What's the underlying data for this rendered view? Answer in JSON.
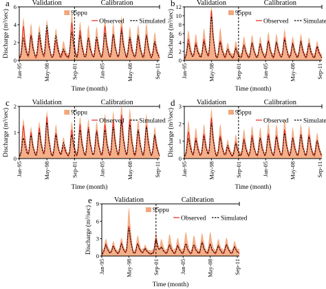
{
  "colors": {
    "band": "#f2a77c",
    "observed": "#e8322a",
    "simulated": "#000000"
  },
  "chart_data": [
    {
      "type": "line",
      "panel": "a",
      "periods": [
        "Validation",
        "Calibration"
      ],
      "xlabel": "Time (month)",
      "ylabel": "Discharge (m³/sec)",
      "ylim": [
        0,
        6
      ],
      "yticks": [
        "0",
        "2",
        "4",
        "6"
      ],
      "xticks": [
        "Jan-95",
        "May-98",
        "Sep-01",
        "Jan-05",
        "May-08",
        "Sep-11"
      ],
      "legend": [
        "95ppu",
        "Observed",
        "Simulated"
      ],
      "peaks": [
        {
          "m": 6,
          "obs": 3.6,
          "sim": 2.2,
          "up": 4.4
        },
        {
          "m": 17,
          "obs": 2.6,
          "sim": 2.4,
          "up": 3.8
        },
        {
          "m": 29,
          "obs": 2.4,
          "sim": 2.8,
          "up": 3.6
        },
        {
          "m": 40,
          "obs": 3.2,
          "sim": 3.6,
          "up": 4.2
        },
        {
          "m": 53,
          "obs": 2.0,
          "sim": 2.5,
          "up": 3.2
        },
        {
          "m": 64,
          "obs": 0.8,
          "sim": 1.0,
          "up": 1.8
        },
        {
          "m": 76,
          "obs": 4.0,
          "sim": 2.9,
          "up": 5.0
        },
        {
          "m": 88,
          "obs": 3.1,
          "sim": 2.5,
          "up": 4.0
        },
        {
          "m": 100,
          "obs": 2.3,
          "sim": 2.2,
          "up": 3.6
        },
        {
          "m": 112,
          "obs": 2.1,
          "sim": 2.3,
          "up": 3.4
        },
        {
          "m": 124,
          "obs": 3.6,
          "sim": 2.8,
          "up": 4.2
        },
        {
          "m": 136,
          "obs": 2.7,
          "sim": 2.6,
          "up": 3.8
        },
        {
          "m": 148,
          "obs": 3.4,
          "sim": 3.0,
          "up": 4.6
        },
        {
          "m": 160,
          "obs": 2.1,
          "sim": 2.3,
          "up": 3.4
        },
        {
          "m": 172,
          "obs": 2.4,
          "sim": 2.5,
          "up": 3.6
        },
        {
          "m": 184,
          "obs": 2.6,
          "sim": 2.4,
          "up": 3.8
        },
        {
          "m": 196,
          "obs": 1.7,
          "sim": 1.8,
          "up": 2.8
        }
      ]
    },
    {
      "type": "line",
      "panel": "b",
      "periods": [
        "Validation",
        "Calibration"
      ],
      "xlabel": "Time (month)",
      "ylabel": "Discharge (m³/sec)",
      "ylim": [
        0,
        12
      ],
      "yticks": [
        "0",
        "2",
        "4",
        "6",
        "8",
        "10",
        "12"
      ],
      "xticks": [
        "Jan-95",
        "May-98",
        "Sep-01",
        "Jan-05",
        "May-08",
        "Sep-11"
      ],
      "legend": [
        "95ppu",
        "Observed",
        "Simulated"
      ],
      "peaks": [
        {
          "m": 6,
          "obs": 4.2,
          "sim": 3.2,
          "up": 6.0
        },
        {
          "m": 17,
          "obs": 3.4,
          "sim": 3.0,
          "up": 5.2
        },
        {
          "m": 29,
          "obs": 4.2,
          "sim": 3.6,
          "up": 6.4
        },
        {
          "m": 40,
          "obs": 10.8,
          "sim": 9.2,
          "up": 11.6
        },
        {
          "m": 53,
          "obs": 4.0,
          "sim": 3.4,
          "up": 6.6
        },
        {
          "m": 64,
          "obs": 1.8,
          "sim": 2.0,
          "up": 3.2
        },
        {
          "m": 76,
          "obs": 2.2,
          "sim": 2.0,
          "up": 3.6
        },
        {
          "m": 88,
          "obs": 3.0,
          "sim": 2.8,
          "up": 4.6
        },
        {
          "m": 100,
          "obs": 3.6,
          "sim": 3.2,
          "up": 5.0
        },
        {
          "m": 112,
          "obs": 3.2,
          "sim": 3.0,
          "up": 4.6
        },
        {
          "m": 124,
          "obs": 4.0,
          "sim": 3.6,
          "up": 5.6
        },
        {
          "m": 136,
          "obs": 3.6,
          "sim": 3.4,
          "up": 5.2
        },
        {
          "m": 148,
          "obs": 4.6,
          "sim": 4.0,
          "up": 6.2
        },
        {
          "m": 160,
          "obs": 3.2,
          "sim": 3.0,
          "up": 4.6
        },
        {
          "m": 172,
          "obs": 3.8,
          "sim": 3.6,
          "up": 5.2
        },
        {
          "m": 184,
          "obs": 3.0,
          "sim": 3.2,
          "up": 4.4
        },
        {
          "m": 196,
          "obs": 2.4,
          "sim": 2.6,
          "up": 3.6
        }
      ]
    },
    {
      "type": "line",
      "panel": "c",
      "periods": [
        "Validation",
        "Calibration"
      ],
      "xlabel": "Time (month)",
      "ylabel": "Discharge (m³/sec)",
      "ylim": [
        0,
        2
      ],
      "yticks": [
        "0",
        "1",
        "2"
      ],
      "xticks": [
        "Jan-95",
        "May-98",
        "Sep-01",
        "Jan-05",
        "May-08",
        "Sep-11"
      ],
      "legend": [
        "95ppu",
        "Observed",
        "Simulated"
      ],
      "peaks": [
        {
          "m": 6,
          "obs": 1.2,
          "sim": 0.7,
          "up": 1.4
        },
        {
          "m": 17,
          "obs": 0.9,
          "sim": 0.8,
          "up": 1.1
        },
        {
          "m": 29,
          "obs": 1.1,
          "sim": 0.9,
          "up": 1.3
        },
        {
          "m": 40,
          "obs": 1.5,
          "sim": 1.3,
          "up": 1.7
        },
        {
          "m": 53,
          "obs": 0.9,
          "sim": 0.8,
          "up": 1.2
        },
        {
          "m": 64,
          "obs": 0.4,
          "sim": 0.5,
          "up": 0.7
        },
        {
          "m": 76,
          "obs": 1.0,
          "sim": 0.8,
          "up": 1.3
        },
        {
          "m": 88,
          "obs": 1.2,
          "sim": 1.0,
          "up": 1.5
        },
        {
          "m": 100,
          "obs": 1.1,
          "sim": 1.0,
          "up": 1.4
        },
        {
          "m": 112,
          "obs": 1.0,
          "sim": 0.9,
          "up": 1.3
        },
        {
          "m": 124,
          "obs": 1.2,
          "sim": 1.0,
          "up": 1.6
        },
        {
          "m": 136,
          "obs": 1.3,
          "sim": 1.1,
          "up": 1.7
        },
        {
          "m": 148,
          "obs": 1.6,
          "sim": 1.3,
          "up": 2.0
        },
        {
          "m": 160,
          "obs": 1.4,
          "sim": 1.2,
          "up": 1.8
        },
        {
          "m": 172,
          "obs": 1.0,
          "sim": 1.0,
          "up": 1.4
        },
        {
          "m": 184,
          "obs": 1.2,
          "sim": 1.1,
          "up": 1.6
        },
        {
          "m": 196,
          "obs": 0.8,
          "sim": 0.8,
          "up": 1.1
        }
      ]
    },
    {
      "type": "line",
      "panel": "d",
      "periods": [
        "Validation",
        "Calibration"
      ],
      "xlabel": "Time (month)",
      "ylabel": "Discharge (m³/sec)",
      "ylim": [
        0,
        3
      ],
      "yticks": [
        "0",
        "1",
        "2",
        "3"
      ],
      "xticks": [
        "Jan-95",
        "May-98",
        "Sep-01",
        "Jan-05",
        "May-08",
        "Sep-11"
      ],
      "legend": [
        "95ppu",
        "Observed",
        "Simulated"
      ],
      "peaks": [
        {
          "m": 6,
          "obs": 1.4,
          "sim": 1.0,
          "up": 2.0
        },
        {
          "m": 17,
          "obs": 1.1,
          "sim": 0.9,
          "up": 1.6
        },
        {
          "m": 29,
          "obs": 1.3,
          "sim": 1.1,
          "up": 1.8
        },
        {
          "m": 40,
          "obs": 2.2,
          "sim": 1.9,
          "up": 2.7
        },
        {
          "m": 53,
          "obs": 1.2,
          "sim": 1.0,
          "up": 1.8
        },
        {
          "m": 64,
          "obs": 0.5,
          "sim": 0.6,
          "up": 0.9
        },
        {
          "m": 76,
          "obs": 0.8,
          "sim": 0.7,
          "up": 1.2
        },
        {
          "m": 88,
          "obs": 1.0,
          "sim": 0.9,
          "up": 1.5
        },
        {
          "m": 100,
          "obs": 1.2,
          "sim": 1.0,
          "up": 1.7
        },
        {
          "m": 112,
          "obs": 1.1,
          "sim": 1.0,
          "up": 1.6
        },
        {
          "m": 124,
          "obs": 1.3,
          "sim": 1.1,
          "up": 1.9
        },
        {
          "m": 136,
          "obs": 1.2,
          "sim": 1.1,
          "up": 1.8
        },
        {
          "m": 148,
          "obs": 1.5,
          "sim": 1.3,
          "up": 2.1
        },
        {
          "m": 160,
          "obs": 1.1,
          "sim": 1.0,
          "up": 1.6
        },
        {
          "m": 172,
          "obs": 1.3,
          "sim": 1.2,
          "up": 1.8
        },
        {
          "m": 184,
          "obs": 1.2,
          "sim": 1.1,
          "up": 1.7
        },
        {
          "m": 196,
          "obs": 0.9,
          "sim": 0.9,
          "up": 1.3
        }
      ]
    },
    {
      "type": "line",
      "panel": "e",
      "periods": [
        "Validation",
        "Calibration"
      ],
      "xlabel": "Time (month)",
      "ylabel": "Discharge (m³/sec)",
      "ylim": [
        0,
        9
      ],
      "yticks": [
        "0",
        "3",
        "6",
        "9"
      ],
      "xticks": [
        "Jan-95",
        "May-98",
        "Sep-01",
        "Jan-05",
        "May-08",
        "Sep-11"
      ],
      "legend": [
        "95ppu",
        "Observed",
        "Simulated"
      ],
      "peaks": [
        {
          "m": 6,
          "obs": 1.6,
          "sim": 1.4,
          "up": 2.4
        },
        {
          "m": 17,
          "obs": 1.4,
          "sim": 1.2,
          "up": 2.0
        },
        {
          "m": 29,
          "obs": 1.8,
          "sim": 1.6,
          "up": 2.6
        },
        {
          "m": 40,
          "obs": 4.8,
          "sim": 4.4,
          "up": 7.8
        },
        {
          "m": 53,
          "obs": 1.8,
          "sim": 1.6,
          "up": 3.0
        },
        {
          "m": 64,
          "obs": 0.8,
          "sim": 0.9,
          "up": 1.4
        },
        {
          "m": 80,
          "obs": 2.6,
          "sim": 2.4,
          "up": 3.4
        },
        {
          "m": 88,
          "obs": 1.2,
          "sim": 1.1,
          "up": 2.4
        },
        {
          "m": 100,
          "obs": 1.6,
          "sim": 1.4,
          "up": 3.2
        },
        {
          "m": 112,
          "obs": 1.4,
          "sim": 1.3,
          "up": 2.6
        },
        {
          "m": 124,
          "obs": 1.8,
          "sim": 1.6,
          "up": 3.6
        },
        {
          "m": 136,
          "obs": 1.6,
          "sim": 1.5,
          "up": 3.0
        },
        {
          "m": 148,
          "obs": 2.0,
          "sim": 1.8,
          "up": 3.4
        },
        {
          "m": 160,
          "obs": 1.6,
          "sim": 1.5,
          "up": 3.6
        },
        {
          "m": 172,
          "obs": 1.4,
          "sim": 1.3,
          "up": 2.4
        },
        {
          "m": 184,
          "obs": 1.6,
          "sim": 1.5,
          "up": 2.6
        },
        {
          "m": 196,
          "obs": 1.2,
          "sim": 1.1,
          "up": 2.0
        }
      ]
    }
  ]
}
